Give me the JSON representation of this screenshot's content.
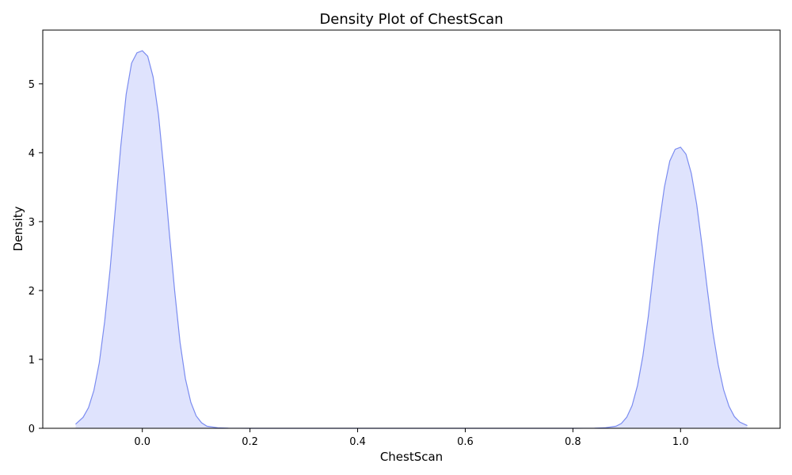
{
  "chart_data": {
    "type": "area",
    "title": "Density Plot of ChestScan",
    "xlabel": "ChestScan",
    "ylabel": "Density",
    "xlim": [
      -0.185,
      1.185
    ],
    "ylim": [
      0,
      5.78
    ],
    "x_ticks": [
      0.0,
      0.2,
      0.4,
      0.6,
      0.8,
      1.0
    ],
    "x_tick_labels": [
      "0.0",
      "0.2",
      "0.4",
      "0.6",
      "0.8",
      "1.0"
    ],
    "y_ticks": [
      0,
      1,
      2,
      3,
      4,
      5
    ],
    "y_tick_labels": [
      "0",
      "1",
      "2",
      "3",
      "4",
      "5"
    ],
    "grid": false,
    "legend": "none",
    "colors": {
      "line": "#7b8cf0",
      "fill": "#dfe3fd",
      "frame": "#000000",
      "background": "#ffffff"
    },
    "series": [
      {
        "x": [
          -0.124,
          -0.11,
          -0.1,
          -0.09,
          -0.08,
          -0.07,
          -0.06,
          -0.05,
          -0.04,
          -0.03,
          -0.02,
          -0.01,
          0.0,
          0.01,
          0.02,
          0.03,
          0.04,
          0.05,
          0.06,
          0.07,
          0.08,
          0.09,
          0.1,
          0.11,
          0.12,
          0.14,
          0.16,
          0.18,
          0.2,
          0.3,
          0.4,
          0.5,
          0.6,
          0.7,
          0.8,
          0.82,
          0.84,
          0.86,
          0.88,
          0.89,
          0.9,
          0.91,
          0.92,
          0.93,
          0.94,
          0.95,
          0.96,
          0.97,
          0.98,
          0.99,
          1.0,
          1.01,
          1.02,
          1.03,
          1.04,
          1.05,
          1.06,
          1.07,
          1.08,
          1.09,
          1.1,
          1.11,
          1.124
        ],
        "y": [
          0.06,
          0.16,
          0.3,
          0.55,
          0.95,
          1.55,
          2.3,
          3.2,
          4.1,
          4.85,
          5.3,
          5.45,
          5.48,
          5.4,
          5.1,
          4.55,
          3.75,
          2.85,
          2.0,
          1.25,
          0.72,
          0.38,
          0.18,
          0.08,
          0.03,
          0.008,
          0.002,
          0.0005,
          0.0,
          0.0,
          0.0,
          0.0,
          0.0,
          0.0,
          0.0,
          0.0005,
          0.002,
          0.008,
          0.03,
          0.07,
          0.16,
          0.33,
          0.62,
          1.05,
          1.62,
          2.3,
          2.95,
          3.5,
          3.88,
          4.05,
          4.08,
          3.98,
          3.7,
          3.25,
          2.65,
          2.0,
          1.4,
          0.92,
          0.56,
          0.32,
          0.17,
          0.09,
          0.04
        ]
      }
    ]
  }
}
